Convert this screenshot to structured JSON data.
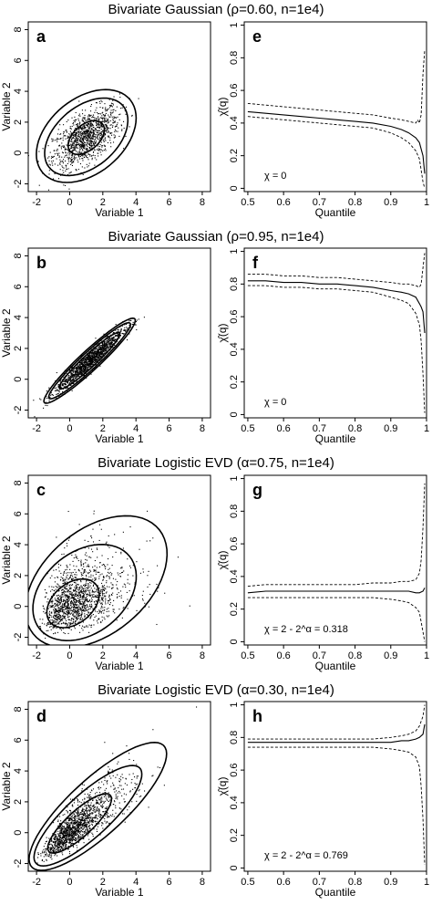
{
  "rows": [
    {
      "title": "Bivariate Gaussian (ρ=0.60, n=1e4)"
    },
    {
      "title": "Bivariate Gaussian (ρ=0.95, n=1e4)"
    },
    {
      "title": "Bivariate Logistic EVD (α=0.75, n=1e4)"
    },
    {
      "title": "Bivariate Logistic EVD (α=0.30, n=1e4)"
    }
  ],
  "chart_data": [
    {
      "type": "scatter",
      "panel": "a",
      "title": "Bivariate Gaussian (ρ=0.60, n=1e4)",
      "xlabel": "Variable 1",
      "ylabel": "Variable 2",
      "xlim": [
        -2.5,
        8.5
      ],
      "ylim": [
        -2.5,
        8.5
      ],
      "xticks": [
        -2,
        0,
        2,
        4,
        6,
        8
      ],
      "yticks": [
        -2,
        0,
        2,
        4,
        6,
        8
      ],
      "scatter": {
        "n": 1200,
        "dist": "gauss",
        "mean": [
          1,
          1
        ],
        "sd": 1,
        "rho": 0.6
      },
      "contours": [
        {
          "cx": 1,
          "cy": 1,
          "a": 1.32,
          "b": 0.8,
          "angle": 45
        },
        {
          "cx": 1,
          "cy": 1.05,
          "a": 3.0,
          "b": 1.9,
          "angle": 45
        },
        {
          "cx": 1,
          "cy": 1.1,
          "a": 3.55,
          "b": 2.35,
          "angle": 45
        }
      ]
    },
    {
      "type": "line",
      "panel": "e",
      "xlabel": "Quantile",
      "ylabel": "χ̂(q)",
      "xlim": [
        0.49,
        1.0
      ],
      "ylim": [
        -0.02,
        1.02
      ],
      "xticks": [
        0.5,
        0.6,
        0.7,
        0.8,
        0.9,
        1.0
      ],
      "yticks": [
        0,
        0.2,
        0.4,
        0.6,
        0.8,
        1.0
      ],
      "annotation": "χ = 0",
      "series": [
        {
          "style": "solid",
          "x": [
            0.5,
            0.55,
            0.6,
            0.65,
            0.7,
            0.75,
            0.8,
            0.85,
            0.9,
            0.93,
            0.95,
            0.97,
            0.98,
            0.99,
            0.995
          ],
          "y": [
            0.47,
            0.46,
            0.45,
            0.44,
            0.43,
            0.42,
            0.41,
            0.4,
            0.38,
            0.36,
            0.34,
            0.31,
            0.28,
            0.2,
            0.09
          ]
        },
        {
          "style": "dashed",
          "x": [
            0.5,
            0.55,
            0.6,
            0.65,
            0.7,
            0.75,
            0.8,
            0.85,
            0.9,
            0.93,
            0.95,
            0.97,
            0.975,
            0.98,
            0.985,
            0.99,
            0.995
          ],
          "y": [
            0.52,
            0.51,
            0.5,
            0.49,
            0.48,
            0.47,
            0.46,
            0.45,
            0.43,
            0.42,
            0.41,
            0.4,
            0.42,
            0.4,
            0.45,
            0.7,
            0.85
          ]
        },
        {
          "style": "dashed",
          "x": [
            0.5,
            0.55,
            0.6,
            0.65,
            0.7,
            0.75,
            0.8,
            0.85,
            0.9,
            0.93,
            0.95,
            0.97,
            0.98,
            0.99,
            0.995
          ],
          "y": [
            0.44,
            0.43,
            0.42,
            0.41,
            0.4,
            0.39,
            0.38,
            0.37,
            0.34,
            0.31,
            0.28,
            0.23,
            0.18,
            0.04,
            0.0
          ]
        }
      ]
    },
    {
      "type": "scatter",
      "panel": "b",
      "title": "Bivariate Gaussian (ρ=0.95, n=1e4)",
      "xlabel": "Variable 1",
      "ylabel": "Variable 2",
      "xlim": [
        -2.5,
        8.5
      ],
      "ylim": [
        -2.5,
        8.5
      ],
      "xticks": [
        -2,
        0,
        2,
        4,
        6,
        8
      ],
      "yticks": [
        -2,
        0,
        2,
        4,
        6,
        8
      ],
      "scatter": {
        "n": 1400,
        "dist": "gauss",
        "mean": [
          1.2,
          1.2
        ],
        "sd": 1,
        "rho": 0.95
      },
      "contours": [
        {
          "cx": 1.2,
          "cy": 1.2,
          "a": 2.55,
          "b": 0.4,
          "angle": 45
        },
        {
          "cx": 1.2,
          "cy": 1.2,
          "a": 3.45,
          "b": 0.52,
          "angle": 45
        },
        {
          "cx": 1.2,
          "cy": 1.2,
          "a": 3.85,
          "b": 0.62,
          "angle": 45
        }
      ]
    },
    {
      "type": "line",
      "panel": "f",
      "xlabel": "Quantile",
      "ylabel": "χ̂(q)",
      "xlim": [
        0.49,
        1.0
      ],
      "ylim": [
        -0.02,
        1.02
      ],
      "xticks": [
        0.5,
        0.6,
        0.7,
        0.8,
        0.9,
        1.0
      ],
      "yticks": [
        0,
        0.2,
        0.4,
        0.6,
        0.8,
        1.0
      ],
      "annotation": "χ = 0",
      "series": [
        {
          "style": "solid",
          "x": [
            0.5,
            0.55,
            0.6,
            0.65,
            0.7,
            0.75,
            0.8,
            0.85,
            0.9,
            0.93,
            0.95,
            0.97,
            0.98,
            0.985,
            0.99,
            0.995
          ],
          "y": [
            0.82,
            0.82,
            0.81,
            0.81,
            0.8,
            0.8,
            0.79,
            0.78,
            0.76,
            0.75,
            0.74,
            0.72,
            0.68,
            0.66,
            0.63,
            0.5
          ]
        },
        {
          "style": "dashed",
          "x": [
            0.5,
            0.55,
            0.6,
            0.65,
            0.7,
            0.75,
            0.8,
            0.85,
            0.9,
            0.93,
            0.95,
            0.97,
            0.98,
            0.985,
            0.99,
            0.995
          ],
          "y": [
            0.86,
            0.86,
            0.85,
            0.85,
            0.84,
            0.84,
            0.83,
            0.82,
            0.81,
            0.8,
            0.8,
            0.79,
            0.78,
            0.8,
            0.9,
            0.99
          ]
        },
        {
          "style": "dashed",
          "x": [
            0.5,
            0.55,
            0.6,
            0.65,
            0.7,
            0.75,
            0.8,
            0.85,
            0.9,
            0.93,
            0.95,
            0.97,
            0.98,
            0.985,
            0.99,
            0.995
          ],
          "y": [
            0.79,
            0.79,
            0.78,
            0.78,
            0.77,
            0.77,
            0.76,
            0.75,
            0.72,
            0.7,
            0.68,
            0.62,
            0.55,
            0.45,
            0.25,
            0.01
          ]
        }
      ]
    },
    {
      "type": "scatter",
      "panel": "c",
      "title": "Bivariate Logistic EVD (α=0.75, n=1e4)",
      "xlabel": "Variable 1",
      "ylabel": "Variable 2",
      "xlim": [
        -2.5,
        8.5
      ],
      "ylim": [
        -2.5,
        8.5
      ],
      "xticks": [
        -2,
        0,
        2,
        4,
        6,
        8
      ],
      "yticks": [
        -2,
        0,
        2,
        4,
        6,
        8
      ],
      "scatter": {
        "n": 1500,
        "dist": "gumbel",
        "rho": 0.4
      },
      "contours": [
        {
          "cx": 0.2,
          "cy": 0.2,
          "a": 1.85,
          "b": 1.25,
          "angle": 45
        },
        {
          "cx": 0.9,
          "cy": 0.9,
          "a": 3.6,
          "b": 2.55,
          "angle": 45
        },
        {
          "cx": 1.6,
          "cy": 1.6,
          "a": 5.1,
          "b": 3.25,
          "angle": 45
        }
      ]
    },
    {
      "type": "line",
      "panel": "g",
      "xlabel": "Quantile",
      "ylabel": "χ̂(q)",
      "xlim": [
        0.49,
        1.0
      ],
      "ylim": [
        -0.02,
        1.02
      ],
      "xticks": [
        0.5,
        0.6,
        0.7,
        0.8,
        0.9,
        1.0
      ],
      "yticks": [
        0,
        0.2,
        0.4,
        0.6,
        0.8,
        1.0
      ],
      "annotation": "χ = 2 - 2^α = 0.318",
      "series": [
        {
          "style": "solid",
          "x": [
            0.5,
            0.55,
            0.6,
            0.65,
            0.7,
            0.75,
            0.8,
            0.85,
            0.9,
            0.93,
            0.95,
            0.97,
            0.98,
            0.99,
            0.995
          ],
          "y": [
            0.3,
            0.31,
            0.31,
            0.31,
            0.31,
            0.31,
            0.31,
            0.31,
            0.31,
            0.31,
            0.31,
            0.3,
            0.3,
            0.31,
            0.33
          ]
        },
        {
          "style": "dashed",
          "x": [
            0.5,
            0.55,
            0.6,
            0.65,
            0.7,
            0.75,
            0.8,
            0.85,
            0.9,
            0.93,
            0.95,
            0.97,
            0.98,
            0.985,
            0.99,
            0.995
          ],
          "y": [
            0.34,
            0.35,
            0.35,
            0.35,
            0.35,
            0.35,
            0.35,
            0.36,
            0.36,
            0.37,
            0.37,
            0.38,
            0.42,
            0.5,
            0.7,
            0.97
          ]
        },
        {
          "style": "dashed",
          "x": [
            0.5,
            0.55,
            0.6,
            0.65,
            0.7,
            0.75,
            0.8,
            0.85,
            0.9,
            0.93,
            0.95,
            0.97,
            0.98,
            0.99,
            0.995
          ],
          "y": [
            0.27,
            0.27,
            0.27,
            0.27,
            0.27,
            0.27,
            0.27,
            0.27,
            0.26,
            0.25,
            0.24,
            0.21,
            0.18,
            0.06,
            0.0
          ]
        }
      ]
    },
    {
      "type": "scatter",
      "panel": "d",
      "title": "Bivariate Logistic EVD (α=0.30, n=1e4)",
      "xlabel": "Variable 1",
      "ylabel": "Variable 2",
      "xlim": [
        -2.5,
        8.5
      ],
      "ylim": [
        -2.5,
        8.5
      ],
      "xticks": [
        -2,
        0,
        2,
        4,
        6,
        8
      ],
      "yticks": [
        -2,
        0,
        2,
        4,
        6,
        8
      ],
      "scatter": {
        "n": 1500,
        "dist": "gumbel",
        "rho": 0.85
      },
      "contours": [
        {
          "cx": 0.6,
          "cy": 0.6,
          "a": 2.6,
          "b": 0.8,
          "angle": 45
        },
        {
          "cx": 1.1,
          "cy": 1.1,
          "a": 4.4,
          "b": 1.35,
          "angle": 45
        },
        {
          "cx": 1.7,
          "cy": 1.7,
          "a": 5.6,
          "b": 1.75,
          "angle": 45
        }
      ]
    },
    {
      "type": "line",
      "panel": "h",
      "xlabel": "Quantile",
      "ylabel": "χ̂(q)",
      "xlim": [
        0.49,
        1.0
      ],
      "ylim": [
        -0.02,
        1.02
      ],
      "xticks": [
        0.5,
        0.6,
        0.7,
        0.8,
        0.9,
        1.0
      ],
      "yticks": [
        0,
        0.2,
        0.4,
        0.6,
        0.8,
        1.0
      ],
      "annotation": "χ = 2 - 2^α = 0.769",
      "series": [
        {
          "style": "solid",
          "x": [
            0.5,
            0.55,
            0.6,
            0.65,
            0.7,
            0.75,
            0.8,
            0.85,
            0.9,
            0.93,
            0.95,
            0.97,
            0.98,
            0.99,
            0.995
          ],
          "y": [
            0.77,
            0.77,
            0.77,
            0.77,
            0.77,
            0.77,
            0.77,
            0.77,
            0.77,
            0.78,
            0.78,
            0.79,
            0.8,
            0.82,
            0.88
          ]
        },
        {
          "style": "dashed",
          "x": [
            0.5,
            0.55,
            0.6,
            0.65,
            0.7,
            0.75,
            0.8,
            0.85,
            0.9,
            0.93,
            0.95,
            0.97,
            0.98,
            0.99,
            0.995
          ],
          "y": [
            0.79,
            0.79,
            0.79,
            0.79,
            0.79,
            0.79,
            0.79,
            0.79,
            0.8,
            0.81,
            0.82,
            0.84,
            0.87,
            0.93,
            1.0
          ]
        },
        {
          "style": "dashed",
          "x": [
            0.5,
            0.55,
            0.6,
            0.65,
            0.7,
            0.75,
            0.8,
            0.85,
            0.9,
            0.93,
            0.95,
            0.97,
            0.98,
            0.985,
            0.99,
            0.995
          ],
          "y": [
            0.74,
            0.74,
            0.74,
            0.74,
            0.74,
            0.74,
            0.74,
            0.74,
            0.73,
            0.72,
            0.71,
            0.68,
            0.62,
            0.5,
            0.3,
            0.02
          ]
        }
      ]
    }
  ]
}
